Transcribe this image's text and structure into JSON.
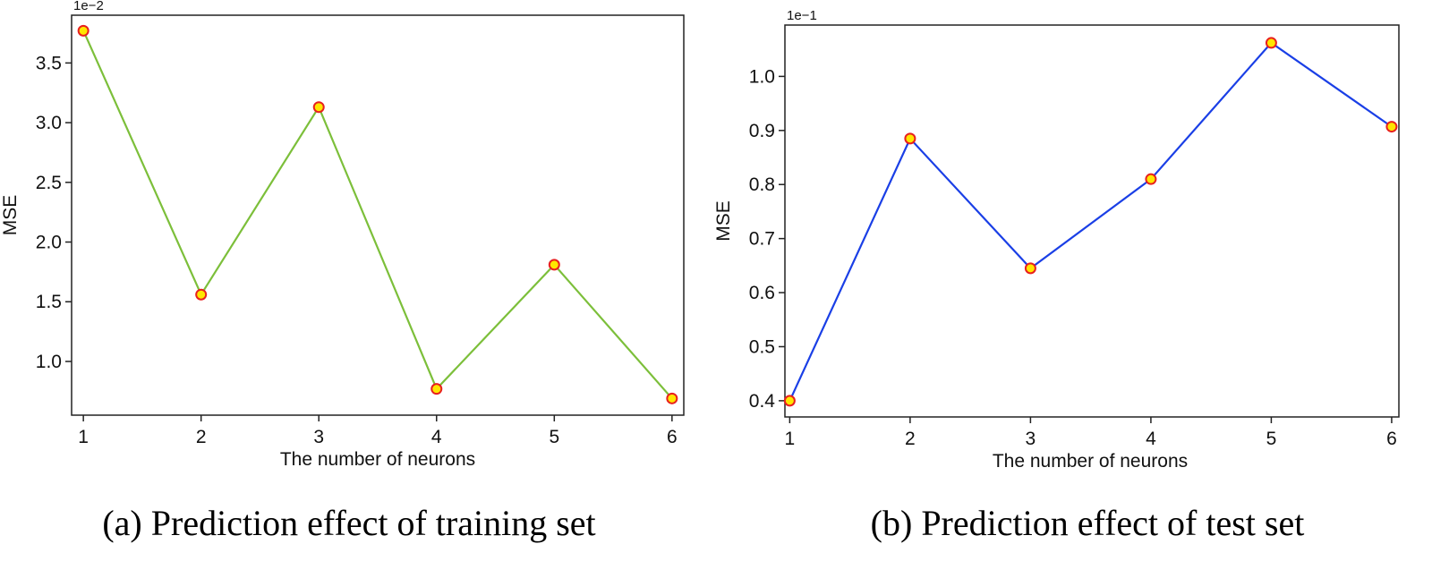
{
  "chart_data": [
    {
      "type": "line",
      "caption": "(a) Prediction effect of training set",
      "xlabel": "The number of neurons",
      "ylabel": "MSE",
      "y_exponent_label": "1e−2",
      "x": [
        1,
        2,
        3,
        4,
        5,
        6
      ],
      "xticks": [
        "1",
        "2",
        "3",
        "4",
        "5",
        "6"
      ],
      "yticks": [
        "1.0",
        "1.5",
        "2.0",
        "2.5",
        "3.0",
        "3.5"
      ],
      "ytick_values": [
        1.0,
        1.5,
        2.0,
        2.5,
        3.0,
        3.5
      ],
      "ylim": [
        0.55,
        3.9
      ],
      "xlim": [
        0.9,
        6.1
      ],
      "series": [
        {
          "values": [
            3.77,
            1.56,
            3.13,
            0.77,
            1.81,
            0.69
          ]
        }
      ],
      "line_color": "#7cbf3a",
      "marker_fill": "#ffe600",
      "marker_edge": "#e8201e",
      "grid": false
    },
    {
      "type": "line",
      "caption": "(b) Prediction effect of test set",
      "xlabel": "The number of neurons",
      "ylabel": "MSE",
      "y_exponent_label": "1e−1",
      "x": [
        1,
        2,
        3,
        4,
        5,
        6
      ],
      "xticks": [
        "1",
        "2",
        "3",
        "4",
        "5",
        "6"
      ],
      "yticks": [
        "0.4",
        "0.5",
        "0.6",
        "0.7",
        "0.8",
        "0.9",
        "1.0"
      ],
      "ytick_values": [
        0.4,
        0.5,
        0.6,
        0.7,
        0.8,
        0.9,
        1.0
      ],
      "ylim": [
        0.37,
        1.095
      ],
      "xlim": [
        0.96,
        6.06
      ],
      "series": [
        {
          "values": [
            0.4,
            0.885,
            0.645,
            0.81,
            1.062,
            0.907
          ]
        }
      ],
      "line_color": "#1a3fe6",
      "marker_fill": "#ffe600",
      "marker_edge": "#e8201e",
      "grid": false
    }
  ]
}
